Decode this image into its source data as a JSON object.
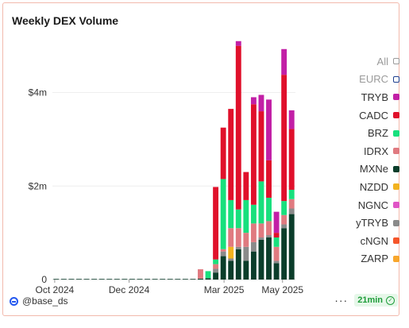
{
  "title": "Weekly DEX Volume",
  "legend": [
    {
      "label": "All",
      "color": "#9a9a9a",
      "hollow": true,
      "muted": true
    },
    {
      "label": "EURC",
      "color": "#1c3f8f",
      "hollow": true,
      "muted": true
    },
    {
      "label": "TRYB",
      "color": "#c21fa6",
      "hollow": false,
      "muted": false
    },
    {
      "label": "CADC",
      "color": "#e0102b",
      "hollow": false,
      "muted": false
    },
    {
      "label": "BRZ",
      "color": "#18e07d",
      "hollow": false,
      "muted": false
    },
    {
      "label": "IDRX",
      "color": "#e07a80",
      "hollow": false,
      "muted": false
    },
    {
      "label": "MXNe",
      "color": "#0b3d2a",
      "hollow": false,
      "muted": false
    },
    {
      "label": "NZDD",
      "color": "#f2b21f",
      "hollow": false,
      "muted": false
    },
    {
      "label": "NGNC",
      "color": "#e055c6",
      "hollow": false,
      "muted": false
    },
    {
      "label": "yTRYB",
      "color": "#8a8a8a",
      "hollow": false,
      "muted": false
    },
    {
      "label": "cNGN",
      "color": "#f5552a",
      "hollow": false,
      "muted": false
    },
    {
      "label": "ZARP",
      "color": "#f8a62c",
      "hollow": false,
      "muted": false
    }
  ],
  "footer": {
    "user": "@base_ds",
    "dots": "···",
    "freshness": "21min",
    "check": "✓"
  },
  "chart_data": {
    "type": "bar",
    "stacked": true,
    "title": "Weekly DEX Volume",
    "xlabel": "",
    "ylabel": "",
    "x_ticks": [
      "Oct 2024",
      "Dec 2024",
      "Mar 2025",
      "May 2025"
    ],
    "y_ticks": [
      "0",
      "$2m",
      "$4m"
    ],
    "ylim": [
      0,
      5300000
    ],
    "grid": true,
    "legend_position": "right",
    "categories": [
      "2024-10-06",
      "2024-10-13",
      "2024-10-20",
      "2024-10-27",
      "2024-11-03",
      "2024-11-10",
      "2024-11-17",
      "2024-11-24",
      "2024-12-01",
      "2024-12-08",
      "2024-12-15",
      "2024-12-22",
      "2024-12-29",
      "2025-01-05",
      "2025-01-12",
      "2025-01-19",
      "2025-01-26",
      "2025-02-02",
      "2025-02-09",
      "2025-02-16",
      "2025-02-23",
      "2025-03-02",
      "2025-03-09",
      "2025-03-16",
      "2025-03-23",
      "2025-03-30",
      "2025-04-06",
      "2025-04-13",
      "2025-04-20",
      "2025-04-27",
      "2025-05-04",
      "2025-05-11"
    ],
    "series": [
      {
        "name": "MXNe",
        "color": "#0b3d2a",
        "values": [
          0.01,
          0.01,
          0.01,
          0.01,
          0.01,
          0.01,
          0.01,
          0.01,
          0.01,
          0.01,
          0.01,
          0.01,
          0.01,
          0.01,
          0.01,
          0.01,
          0.01,
          0.01,
          0.01,
          0.02,
          0.03,
          0.15,
          0.5,
          0.4,
          0.65,
          0.4,
          0.6,
          0.85,
          0.9,
          0.35,
          1.1,
          1.4
        ]
      },
      {
        "name": "yTRYB",
        "color": "#8a8a8a",
        "values": [
          0,
          0,
          0,
          0,
          0,
          0,
          0,
          0,
          0,
          0,
          0,
          0,
          0,
          0,
          0,
          0,
          0,
          0,
          0,
          0,
          0,
          0.08,
          0.1,
          0.05,
          0.05,
          0.3,
          0.2,
          0.05,
          0.05,
          0.05,
          0.08,
          0.12
        ]
      },
      {
        "name": "NZDD",
        "color": "#f2b21f",
        "values": [
          0,
          0,
          0,
          0,
          0,
          0,
          0,
          0,
          0,
          0,
          0,
          0,
          0,
          0,
          0,
          0,
          0,
          0,
          0,
          0,
          0,
          0,
          0,
          0.25,
          0,
          0,
          0,
          0,
          0,
          0,
          0,
          0
        ]
      },
      {
        "name": "IDRX",
        "color": "#e07a80",
        "values": [
          0,
          0,
          0,
          0,
          0,
          0,
          0,
          0,
          0,
          0,
          0,
          0,
          0,
          0,
          0,
          0,
          0,
          0,
          0,
          0.2,
          0,
          0.1,
          0.05,
          0.4,
          0.4,
          0.3,
          0.4,
          0.3,
          0.3,
          0.3,
          0.2,
          0.2
        ]
      },
      {
        "name": "BRZ",
        "color": "#18e07d",
        "values": [
          0,
          0,
          0,
          0,
          0,
          0,
          0,
          0,
          0,
          0,
          0,
          0,
          0,
          0,
          0,
          0,
          0,
          0,
          0,
          0,
          0.15,
          0.1,
          1.5,
          0.6,
          0.4,
          0.7,
          0.4,
          0.9,
          0.5,
          0.2,
          0.3,
          0.2
        ]
      },
      {
        "name": "CADC",
        "color": "#e0102b",
        "values": [
          0,
          0,
          0,
          0,
          0,
          0,
          0,
          0,
          0,
          0,
          0,
          0,
          0,
          0,
          0,
          0,
          0,
          0,
          0,
          0,
          0,
          1.55,
          1.1,
          1.95,
          3.5,
          0.6,
          2.15,
          1.5,
          0.8,
          0.1,
          2.7,
          1.3
        ]
      },
      {
        "name": "TRYB",
        "color": "#c21fa6",
        "values": [
          0,
          0,
          0,
          0,
          0,
          0,
          0,
          0,
          0,
          0,
          0,
          0,
          0,
          0,
          0,
          0,
          0,
          0,
          0,
          0,
          0,
          0,
          0,
          0,
          0.1,
          0,
          0.15,
          0.35,
          1.3,
          0.45,
          0.55,
          0.4
        ]
      }
    ],
    "series_units": "millions USD"
  }
}
